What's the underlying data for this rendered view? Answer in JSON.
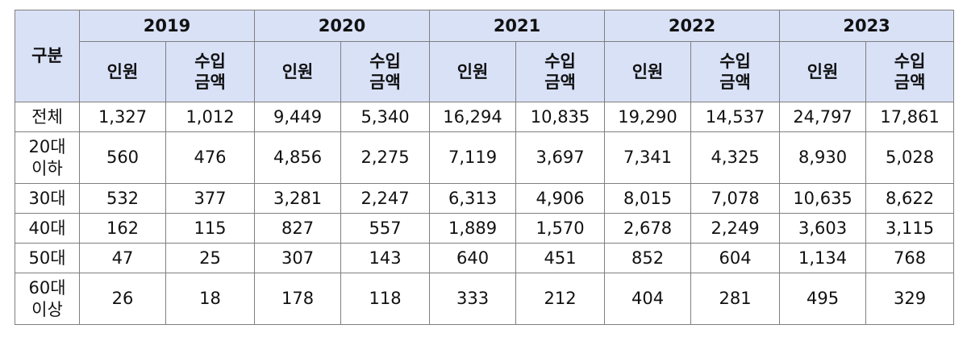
{
  "header": {
    "category_label": "구분",
    "years": [
      "2019",
      "2020",
      "2021",
      "2022",
      "2023"
    ],
    "sub_people": "인원",
    "sub_amount": "수입\n금액"
  },
  "rows": [
    {
      "label": "전체",
      "values": [
        "1,327",
        "1,012",
        "9,449",
        "5,340",
        "16,294",
        "10,835",
        "19,290",
        "14,537",
        "24,797",
        "17,861"
      ]
    },
    {
      "label": "20대\n이하",
      "values": [
        "560",
        "476",
        "4,856",
        "2,275",
        "7,119",
        "3,697",
        "7,341",
        "4,325",
        "8,930",
        "5,028"
      ]
    },
    {
      "label": "30대",
      "values": [
        "532",
        "377",
        "3,281",
        "2,247",
        "6,313",
        "4,906",
        "8,015",
        "7,078",
        "10,635",
        "8,622"
      ]
    },
    {
      "label": "40대",
      "values": [
        "162",
        "115",
        "827",
        "557",
        "1,889",
        "1,570",
        "2,678",
        "2,249",
        "3,603",
        "3,115"
      ]
    },
    {
      "label": "50대",
      "values": [
        "47",
        "25",
        "307",
        "143",
        "640",
        "451",
        "852",
        "604",
        "1,134",
        "768"
      ]
    },
    {
      "label": "60대\n이상",
      "values": [
        "26",
        "18",
        "178",
        "118",
        "333",
        "212",
        "404",
        "281",
        "495",
        "329"
      ]
    }
  ]
}
